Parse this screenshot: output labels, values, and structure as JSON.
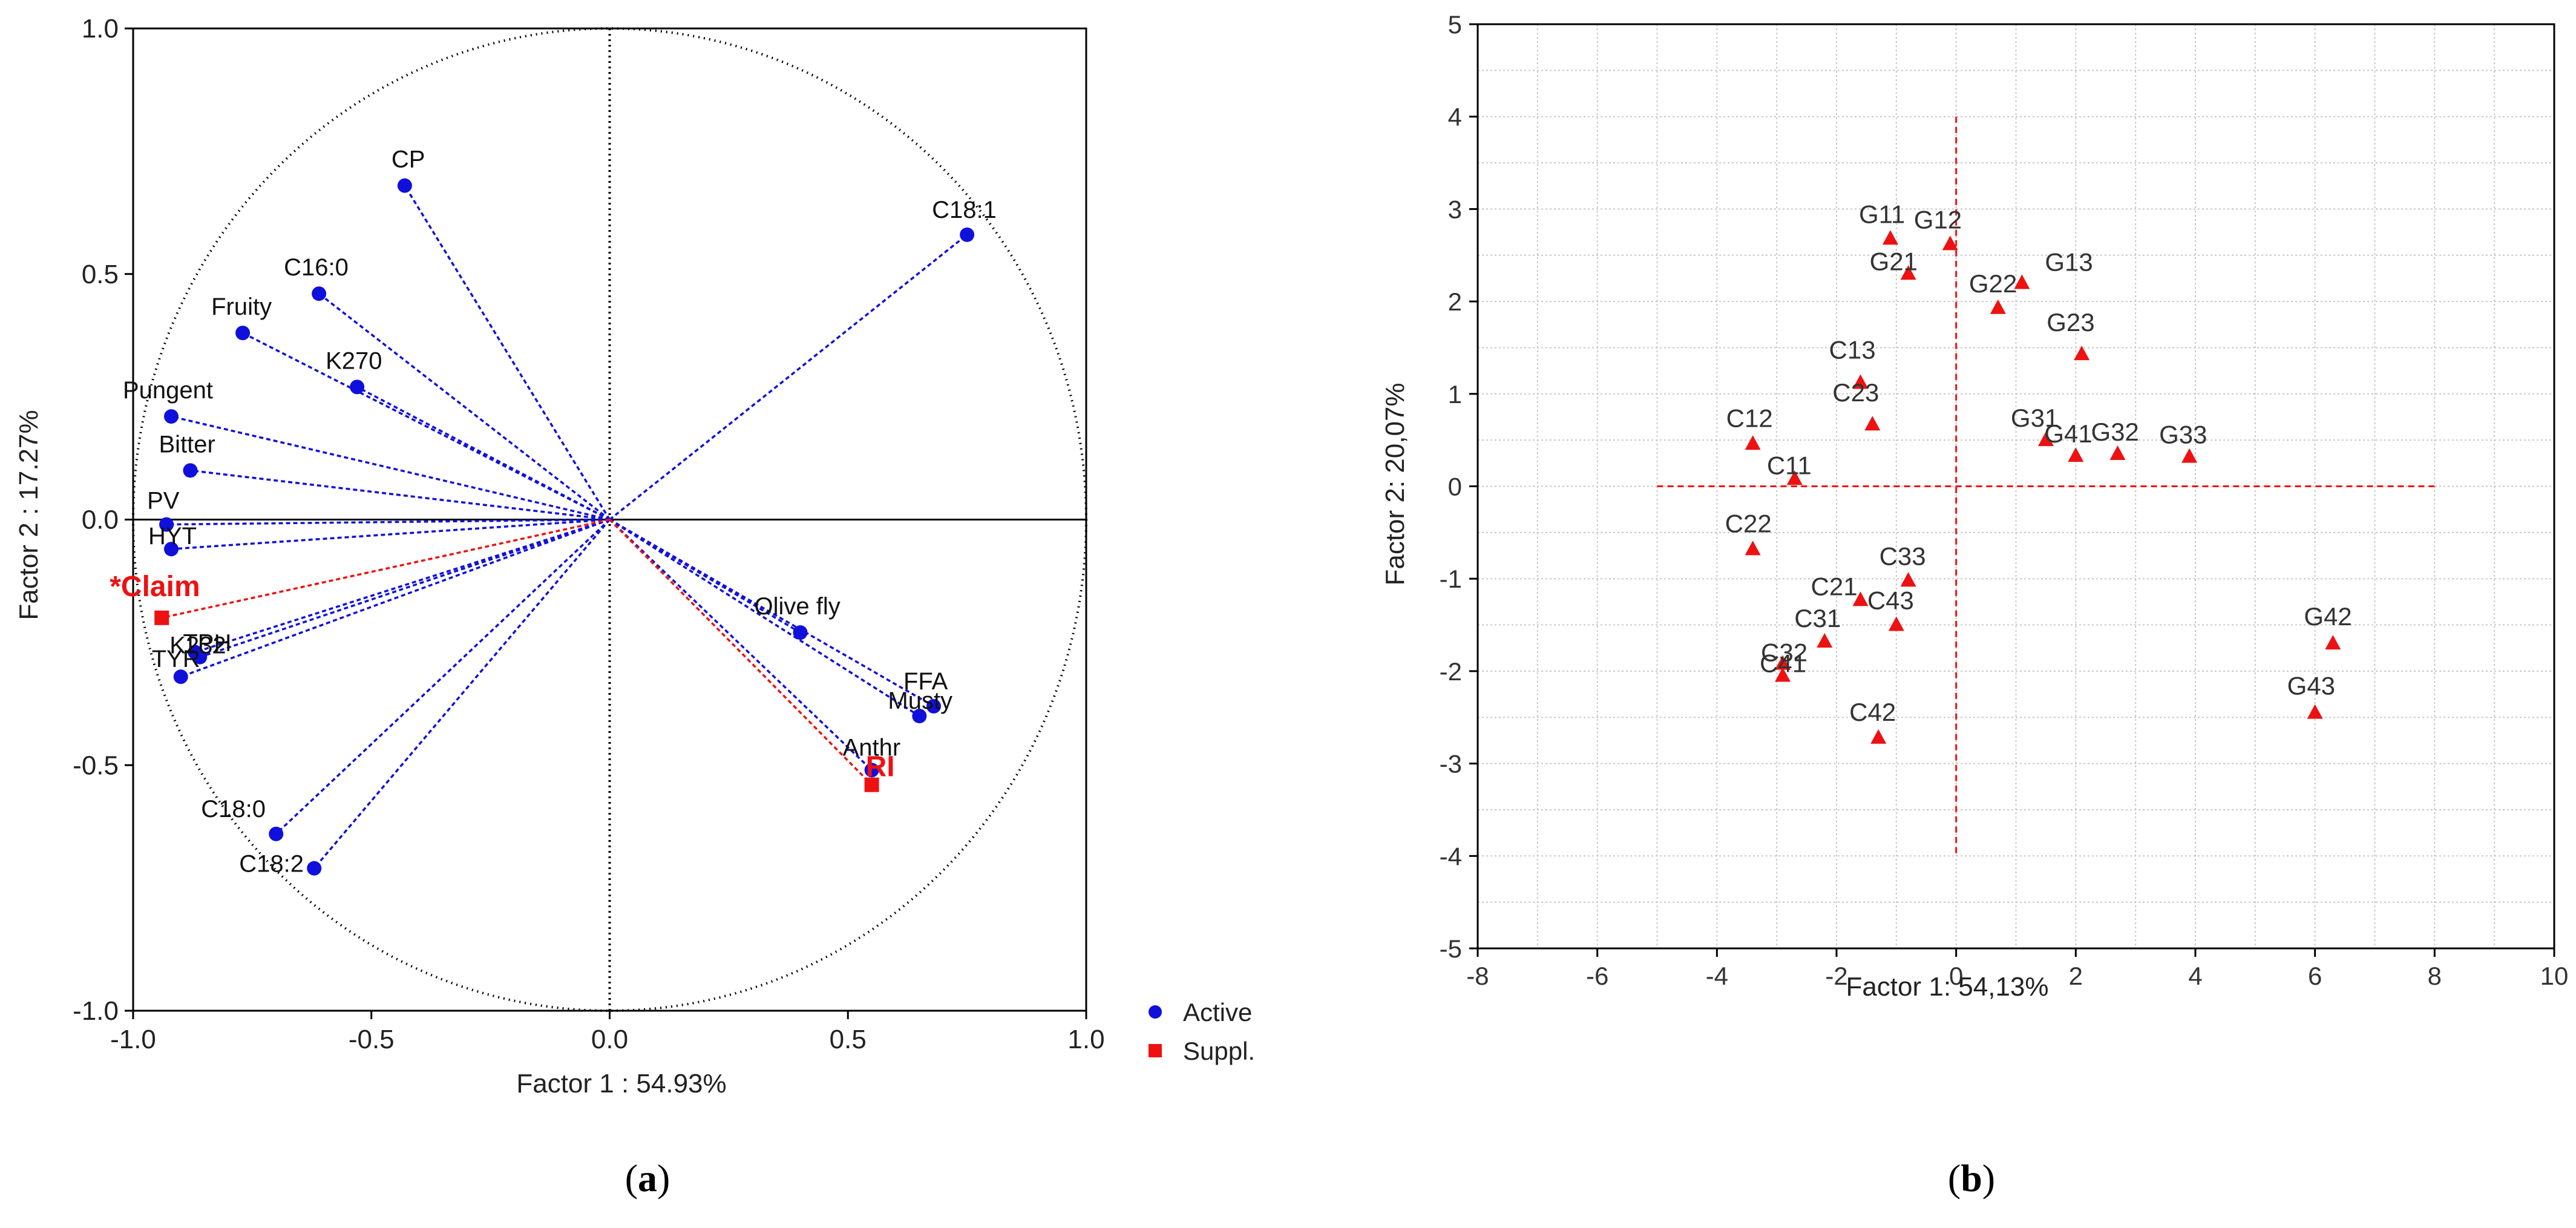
{
  "chart_data": [
    {
      "type": "scatter",
      "subtype": "correlation-circle",
      "panel_label": "a",
      "xlabel": "Factor 1 : 54.93%",
      "ylabel": "Factor 2 : 17.27%",
      "xlim": [
        -1.0,
        1.0
      ],
      "ylim": [
        -1.0,
        1.0
      ],
      "x_ticks": [
        -1.0,
        -0.5,
        0.0,
        0.5,
        1.0
      ],
      "y_ticks": [
        -1.0,
        -0.5,
        0.0,
        0.5,
        1.0
      ],
      "x_tick_labels": [
        "-1.0",
        "-0.5",
        "0.0",
        "0.5",
        "1.0"
      ],
      "y_tick_labels": [
        "-1.0",
        "-0.5",
        "0.0",
        "0.5",
        "1.0"
      ],
      "grid": false,
      "unit_circle": true,
      "legend_position": "bottom-right outside",
      "colors": {
        "active": "#1010dd",
        "suppl": "#ee1111"
      },
      "series": [
        {
          "name": "Active",
          "marker": "circle",
          "points": [
            {
              "label": "CP",
              "x": -0.43,
              "y": 0.68
            },
            {
              "label": "C18:1",
              "x": 0.75,
              "y": 0.58
            },
            {
              "label": "C16:0",
              "x": -0.61,
              "y": 0.46
            },
            {
              "label": "Fruity",
              "x": -0.77,
              "y": 0.38
            },
            {
              "label": "K270",
              "x": -0.53,
              "y": 0.27
            },
            {
              "label": "Pungent",
              "x": -0.92,
              "y": 0.21
            },
            {
              "label": "Bitter",
              "x": -0.88,
              "y": 0.1
            },
            {
              "label": "PV",
              "x": -0.93,
              "y": -0.01
            },
            {
              "label": "HYT",
              "x": -0.92,
              "y": -0.06
            },
            {
              "label": "TPH",
              "x": -0.87,
              "y": -0.27
            },
            {
              "label": "K232",
              "x": -0.86,
              "y": -0.28
            },
            {
              "label": "TYR",
              "x": -0.9,
              "y": -0.32
            },
            {
              "label": "Olive fly",
              "x": 0.4,
              "y": -0.23
            },
            {
              "label": "Musty",
              "x": 0.65,
              "y": -0.4
            },
            {
              "label": "FFA",
              "x": 0.68,
              "y": -0.38
            },
            {
              "label": "Anthr",
              "x": 0.55,
              "y": -0.51
            },
            {
              "label": "C18:0",
              "x": -0.7,
              "y": -0.64
            },
            {
              "label": "C18:2",
              "x": -0.62,
              "y": -0.71
            }
          ]
        },
        {
          "name": "Suppl.",
          "marker": "square",
          "points": [
            {
              "label": "*Claim",
              "x": -0.94,
              "y": -0.2
            },
            {
              "label": "RI",
              "x": 0.55,
              "y": -0.54
            }
          ]
        }
      ]
    },
    {
      "type": "scatter",
      "panel_label": "b",
      "xlabel": "Factor 1: 54,13%",
      "ylabel": "Factor 2: 20,07%",
      "xlim": [
        -8,
        10
      ],
      "ylim": [
        -5,
        5
      ],
      "x_ticks": [
        -8,
        -6,
        -4,
        -2,
        0,
        2,
        4,
        6,
        8,
        10
      ],
      "y_ticks": [
        -5,
        -4,
        -3,
        -2,
        -1,
        0,
        1,
        2,
        3,
        4,
        5
      ],
      "grid": true,
      "reference_lines": {
        "horizontal_y": 0,
        "horizontal_x_range": [
          -5,
          8
        ],
        "vertical_x": 0,
        "vertical_y_range": [
          -4,
          4
        ]
      },
      "marker": "triangle",
      "color": "#ee1111",
      "points": [
        {
          "label": "G11",
          "x": -1.1,
          "y": 2.68
        },
        {
          "label": "G12",
          "x": -0.1,
          "y": 2.62
        },
        {
          "label": "G21",
          "x": -0.8,
          "y": 2.3
        },
        {
          "label": "G13",
          "x": 1.1,
          "y": 2.2
        },
        {
          "label": "G22",
          "x": 0.7,
          "y": 1.93
        },
        {
          "label": "G23",
          "x": 2.1,
          "y": 1.43
        },
        {
          "label": "C13",
          "x": -1.6,
          "y": 1.12
        },
        {
          "label": "C23",
          "x": -1.4,
          "y": 0.67
        },
        {
          "label": "G31",
          "x": 1.5,
          "y": 0.5
        },
        {
          "label": "G41",
          "x": 2.0,
          "y": 0.33
        },
        {
          "label": "G32",
          "x": 2.7,
          "y": 0.35
        },
        {
          "label": "G33",
          "x": 3.9,
          "y": 0.32
        },
        {
          "label": "C12",
          "x": -3.4,
          "y": 0.46
        },
        {
          "label": "C11",
          "x": -2.7,
          "y": 0.08
        },
        {
          "label": "C22",
          "x": -3.4,
          "y": -0.68
        },
        {
          "label": "C33",
          "x": -0.8,
          "y": -1.02
        },
        {
          "label": "C21",
          "x": -1.6,
          "y": -1.23
        },
        {
          "label": "C43",
          "x": -1.0,
          "y": -1.5
        },
        {
          "label": "C31",
          "x": -2.2,
          "y": -1.68
        },
        {
          "label": "C32",
          "x": -2.9,
          "y": -1.92
        },
        {
          "label": "C41",
          "x": -2.9,
          "y": -2.05
        },
        {
          "label": "C42",
          "x": -1.3,
          "y": -2.72
        },
        {
          "label": "G42",
          "x": 6.3,
          "y": -1.7
        },
        {
          "label": "G43",
          "x": 6.0,
          "y": -2.45
        }
      ]
    }
  ]
}
